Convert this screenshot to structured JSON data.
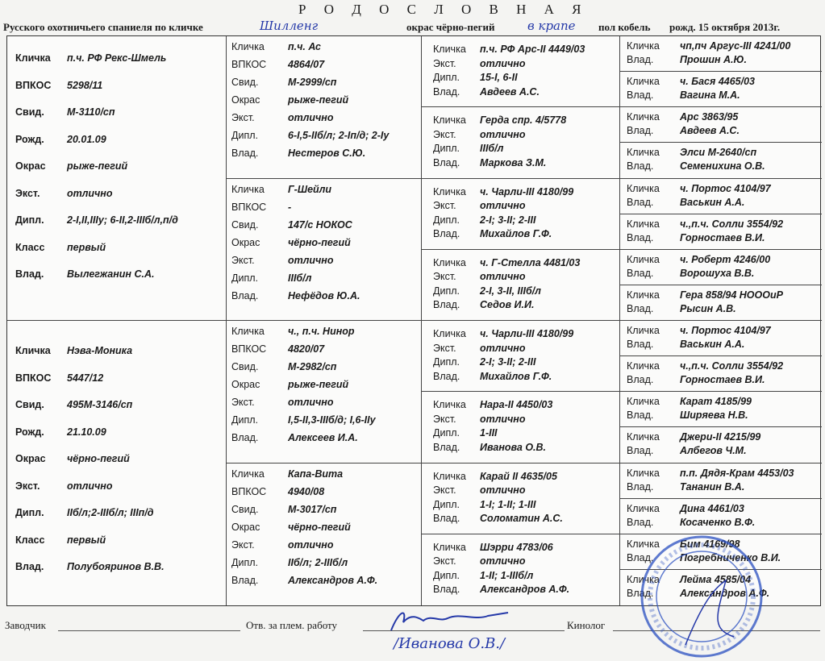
{
  "header": {
    "title": "Р О Д О С Л О В Н А Я",
    "breed_label": "Русского охотничьего спаниеля по кличке",
    "name_handwritten": "Шилленг",
    "color_label": "окрас  чёрно-пегий",
    "color_handwritten": "в крапе",
    "sex_label": "пол  кобель",
    "birth_label": "рожд.  15 октября 2013г."
  },
  "pedigree": {
    "sire": {
      "fields": [
        {
          "label": "Кличка",
          "value": "п.ч. РФ Рекс-Шмель"
        },
        {
          "label": "ВПКОС",
          "value": "5298/11"
        },
        {
          "label": "Свид.",
          "value": "М-3110/сп"
        },
        {
          "label": "Рожд.",
          "value": "20.01.09"
        },
        {
          "label": "Окрас",
          "value": "рыже-пегий"
        },
        {
          "label": "Экст.",
          "value": "отлично"
        },
        {
          "label": "Дипл.",
          "value": "2-I,II,IIIу; 6-II,2-IIIб/л,п/д"
        },
        {
          "label": "Класс",
          "value": "первый"
        },
        {
          "label": "Влад.",
          "value": "Вылегжанин С.А."
        }
      ]
    },
    "dam": {
      "fields": [
        {
          "label": "Кличка",
          "value": "Нэва-Моника"
        },
        {
          "label": "ВПКОС",
          "value": "5447/12"
        },
        {
          "label": "Свид.",
          "value": "495М-3146/сп"
        },
        {
          "label": "Рожд.",
          "value": "21.10.09"
        },
        {
          "label": "Окрас",
          "value": "чёрно-пегий"
        },
        {
          "label": "Экст.",
          "value": "отлично"
        },
        {
          "label": "Дипл.",
          "value": "IIб/л;2-IIIб/л; IIIп/д"
        },
        {
          "label": "Класс",
          "value": "первый"
        },
        {
          "label": "Влад.",
          "value": "Полубояринов В.В."
        }
      ]
    },
    "grandparents": [
      {
        "fields": [
          {
            "label": "Кличка",
            "value": "п.ч. Ас"
          },
          {
            "label": "ВПКОС",
            "value": "4864/07"
          },
          {
            "label": "Свид.",
            "value": "М-2999/сп"
          },
          {
            "label": "Окрас",
            "value": "рыже-пегий"
          },
          {
            "label": "Экст.",
            "value": "отлично"
          },
          {
            "label": "Дипл.",
            "value": "6-I,5-IIб/л; 2-Iп/д; 2-Iу"
          },
          {
            "label": "Влад.",
            "value": "Нестеров С.Ю."
          }
        ]
      },
      {
        "fields": [
          {
            "label": "Кличка",
            "value": "Г-Шейли"
          },
          {
            "label": "ВПКОС",
            "value": "       -"
          },
          {
            "label": "Свид.",
            "value": "147/с НОКОС"
          },
          {
            "label": "Окрас",
            "value": "чёрно-пегий"
          },
          {
            "label": "Экст.",
            "value": "отлично"
          },
          {
            "label": "Дипл.",
            "value": "IIIб/л"
          },
          {
            "label": "Влад.",
            "value": "Нефёдов Ю.А."
          }
        ]
      },
      {
        "fields": [
          {
            "label": "Кличка",
            "value": "ч., п.ч. Нинор"
          },
          {
            "label": "ВПКОС",
            "value": "4820/07"
          },
          {
            "label": "Свид.",
            "value": "М-2982/сп"
          },
          {
            "label": "Окрас",
            "value": "рыже-пегий"
          },
          {
            "label": "Экст.",
            "value": "отлично"
          },
          {
            "label": "Дипл.",
            "value": "I,5-II,3-IIIб/д; I,6-IIу"
          },
          {
            "label": "Влад.",
            "value": "Алексеев И.А."
          }
        ]
      },
      {
        "fields": [
          {
            "label": "Кличка",
            "value": "Капа-Вита"
          },
          {
            "label": "ВПКОС",
            "value": "4940/08"
          },
          {
            "label": "Свид.",
            "value": "М-3017/сп"
          },
          {
            "label": "Окрас",
            "value": "чёрно-пегий"
          },
          {
            "label": "Экст.",
            "value": "отлично"
          },
          {
            "label": "Дипл.",
            "value": " IIб/л; 2-IIIб/л"
          },
          {
            "label": "Влад.",
            "value": "Александров А.Ф."
          }
        ]
      }
    ],
    "great_grandparents": [
      {
        "fields": [
          {
            "label": "Кличка",
            "value": "п.ч. РФ Арс-II 4449/03"
          },
          {
            "label": "Экст.",
            "value": "отлично"
          },
          {
            "label": "Дипл.",
            "value": "15-I, 6-II"
          },
          {
            "label": "Влад.",
            "value": "Авдеев А.С."
          }
        ]
      },
      {
        "fields": [
          {
            "label": "Кличка",
            "value": "Герда спр. 4/5778"
          },
          {
            "label": "Экст.",
            "value": "отлично"
          },
          {
            "label": "Дипл.",
            "value": "IIIб/л"
          },
          {
            "label": "Влад.",
            "value": "Маркова З.М."
          }
        ]
      },
      {
        "fields": [
          {
            "label": "Кличка",
            "value": "ч. Чарли-III 4180/99"
          },
          {
            "label": "Экст.",
            "value": "отлично"
          },
          {
            "label": "Дипл.",
            "value": "2-I; 3-II; 2-III"
          },
          {
            "label": "Влад.",
            "value": "Михайлов Г.Ф."
          }
        ]
      },
      {
        "fields": [
          {
            "label": "Кличка",
            "value": "ч. Г-Стелла 4481/03"
          },
          {
            "label": "Экст.",
            "value": "отлично"
          },
          {
            "label": "Дипл.",
            "value": "2-I, 3-II, IIIб/л"
          },
          {
            "label": "Влад.",
            "value": "Седов И.И."
          }
        ]
      },
      {
        "fields": [
          {
            "label": "Кличка",
            "value": "ч. Чарли-III 4180/99"
          },
          {
            "label": "Экст.",
            "value": "отлично"
          },
          {
            "label": "Дипл.",
            "value": "2-I; 3-II; 2-III"
          },
          {
            "label": "Влад.",
            "value": "Михайлов Г.Ф."
          }
        ]
      },
      {
        "fields": [
          {
            "label": "Кличка",
            "value": "Нара-II 4450/03"
          },
          {
            "label": "Экст.",
            "value": "отлично"
          },
          {
            "label": "Дипл.",
            "value": "1-III"
          },
          {
            "label": "Влад.",
            "value": "Иванова О.В."
          }
        ]
      },
      {
        "fields": [
          {
            "label": "Кличка",
            "value": "Карай II 4635/05"
          },
          {
            "label": "Экст.",
            "value": "отлично"
          },
          {
            "label": "Дипл.",
            "value": "1-I; 1-II; 1-III"
          },
          {
            "label": "Влад.",
            "value": "Соломатин А.С."
          }
        ]
      },
      {
        "fields": [
          {
            "label": "Кличка",
            "value": "Шэрри 4783/06"
          },
          {
            "label": "Экст.",
            "value": "отлично"
          },
          {
            "label": "Дипл.",
            "value": "1-II; 1-IIIб/л"
          },
          {
            "label": "Влад.",
            "value": "Александров А.Ф."
          }
        ]
      }
    ],
    "gg_grandparents": [
      {
        "fields": [
          {
            "label": "Кличка",
            "value": "чп,пч Аргус-III 4241/00"
          },
          {
            "label": "Влад.",
            "value": "Прошин А.Ю."
          }
        ]
      },
      {
        "fields": [
          {
            "label": "Кличка",
            "value": "ч. Бася 4465/03"
          },
          {
            "label": "Влад.",
            "value": "Вагина М.А."
          }
        ]
      },
      {
        "fields": [
          {
            "label": "Кличка",
            "value": "Арс 3863/95"
          },
          {
            "label": "Влад.",
            "value": "Авдеев А.С."
          }
        ]
      },
      {
        "fields": [
          {
            "label": "Кличка",
            "value": "Элси М-2640/сп"
          },
          {
            "label": "Влад.",
            "value": "Семенихина О.В."
          }
        ]
      },
      {
        "fields": [
          {
            "label": "Кличка",
            "value": "ч. Портос 4104/97"
          },
          {
            "label": "Влад.",
            "value": "Васькин А.А."
          }
        ]
      },
      {
        "fields": [
          {
            "label": "Кличка",
            "value": "ч.,п.ч. Солли 3554/92"
          },
          {
            "label": "Влад.",
            "value": "Горностаев В.И."
          }
        ]
      },
      {
        "fields": [
          {
            "label": "Кличка",
            "value": "ч. Роберт 4246/00"
          },
          {
            "label": "Влад.",
            "value": "Ворошуха В.В."
          }
        ]
      },
      {
        "fields": [
          {
            "label": "Кличка",
            "value": "Гера 858/94 НОООиР"
          },
          {
            "label": "Влад.",
            "value": "Рысин А.В."
          }
        ]
      },
      {
        "fields": [
          {
            "label": "Кличка",
            "value": "ч. Портос 4104/97"
          },
          {
            "label": "Влад.",
            "value": "Васькин А.А."
          }
        ]
      },
      {
        "fields": [
          {
            "label": "Кличка",
            "value": "ч.,п.ч. Солли 3554/92"
          },
          {
            "label": "Влад.",
            "value": "Горностаев В.И."
          }
        ]
      },
      {
        "fields": [
          {
            "label": "Кличка",
            "value": "Карат 4185/99"
          },
          {
            "label": "Влад.",
            "value": "Ширяева Н.В."
          }
        ]
      },
      {
        "fields": [
          {
            "label": "Кличка",
            "value": "Джери-II 4215/99"
          },
          {
            "label": "Влад.",
            "value": "Албегов Ч.М."
          }
        ]
      },
      {
        "fields": [
          {
            "label": "Кличка",
            "value": "п.п. Дядя-Крам 4453/03"
          },
          {
            "label": "Влад.",
            "value": "Тананин В.А."
          }
        ]
      },
      {
        "fields": [
          {
            "label": "Кличка",
            "value": "Дина 4461/03"
          },
          {
            "label": "Влад.",
            "value": "Косаченко В.Ф."
          }
        ]
      },
      {
        "fields": [
          {
            "label": "Кличка",
            "value": "Бим 4169/98"
          },
          {
            "label": "Влад.",
            "value": "Погребниченко В.И."
          }
        ]
      },
      {
        "fields": [
          {
            "label": "Кличка",
            "value": "Лейма 4585/04"
          },
          {
            "label": "Влад.",
            "value": "Александров А.Ф."
          }
        ]
      }
    ]
  },
  "footer": {
    "breeder_label": "Заводчик",
    "breeding_resp_label": "Отв. за плем. работу",
    "breeding_resp_name_handwritten": "/Иванова О.В./",
    "cynologist_label": "Кинолог"
  },
  "stamp": {
    "text": "ОБЩЕСТВО ОХОТНИКОВ · ОТДЕЛ ОХОТНИЧЬЕГО СОБАКОВОДСТВА",
    "color": "#2a4fc0"
  },
  "colors": {
    "ink": "#1a1a1a",
    "handwriting": "#2438a8"
  }
}
